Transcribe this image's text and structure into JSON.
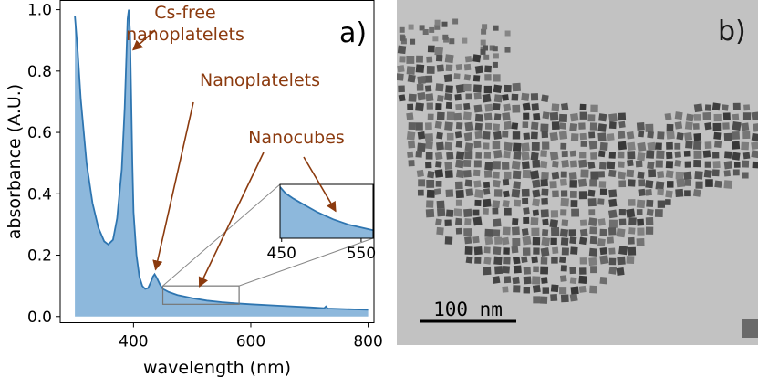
{
  "chart_data": [
    {
      "type": "area",
      "panel_label": "a)",
      "xlabel": "wavelength (nm)",
      "ylabel": "absorbance (A.U.)",
      "xlim": [
        275,
        810
      ],
      "ylim": [
        -0.02,
        1.03
      ],
      "x_ticks": [
        400,
        600,
        800
      ],
      "y_ticks": [
        0.0,
        0.2,
        0.4,
        0.6,
        0.8,
        1.0
      ],
      "x_tick_labels": [
        "400",
        "600",
        "800"
      ],
      "y_tick_labels": [
        "0.0",
        "0.2",
        "0.4",
        "0.6",
        "0.8",
        "1.0"
      ],
      "grid": false,
      "series": [
        {
          "color": "#2e75b0",
          "fill": "#8db8dc",
          "x": [
            300,
            305,
            310,
            320,
            330,
            340,
            350,
            357,
            365,
            372,
            380,
            385,
            388,
            390,
            392,
            394,
            396,
            398,
            400,
            405,
            410,
            415,
            420,
            425,
            430,
            433,
            436,
            440,
            445,
            450,
            460,
            475,
            500,
            525,
            550,
            575,
            600,
            650,
            700,
            725,
            728,
            731,
            750,
            800
          ],
          "y": [
            0.98,
            0.86,
            0.71,
            0.5,
            0.37,
            0.29,
            0.245,
            0.235,
            0.25,
            0.32,
            0.48,
            0.68,
            0.86,
            0.97,
            1.0,
            0.93,
            0.72,
            0.5,
            0.34,
            0.2,
            0.13,
            0.1,
            0.09,
            0.093,
            0.115,
            0.13,
            0.138,
            0.125,
            0.105,
            0.09,
            0.08,
            0.07,
            0.06,
            0.052,
            0.047,
            0.043,
            0.04,
            0.035,
            0.03,
            0.027,
            0.033,
            0.026,
            0.025,
            0.022
          ]
        }
      ],
      "annotations": [
        {
          "lines": [
            "Cs-free",
            "nanoplatelets"
          ],
          "target": [
            393,
            1.0
          ]
        },
        {
          "lines": [
            "Nanoplatelets"
          ],
          "target": [
            436,
            0.138
          ]
        },
        {
          "lines": [
            "Nanocubes"
          ],
          "target": [
            517,
            0.08
          ]
        }
      ],
      "zoom_region": {
        "xlim": [
          450,
          580
        ],
        "ylim": [
          0.04,
          0.1
        ]
      },
      "inset": {
        "xlim": [
          448,
          565
        ],
        "ylim": [
          0.04,
          0.1
        ],
        "x_ticks": [
          450,
          550
        ],
        "x_tick_labels": [
          "450",
          "550"
        ],
        "x": [
          448,
          455,
          465,
          475,
          485,
          495,
          505,
          515,
          525,
          535,
          545,
          555,
          565
        ],
        "y": [
          0.097,
          0.09,
          0.084,
          0.079,
          0.074,
          0.069,
          0.065,
          0.061,
          0.058,
          0.055,
          0.053,
          0.051,
          0.049
        ],
        "annotation_target": [
          518,
          0.067
        ]
      }
    },
    {
      "type": "image",
      "panel_label": "b)",
      "scale_bar_label": "100 nm"
    }
  ],
  "colors": {
    "annotation": "#8b3a0e",
    "line": "#2e75b0",
    "fill": "#8db8dc",
    "tem_background": "#c2c2c2"
  }
}
